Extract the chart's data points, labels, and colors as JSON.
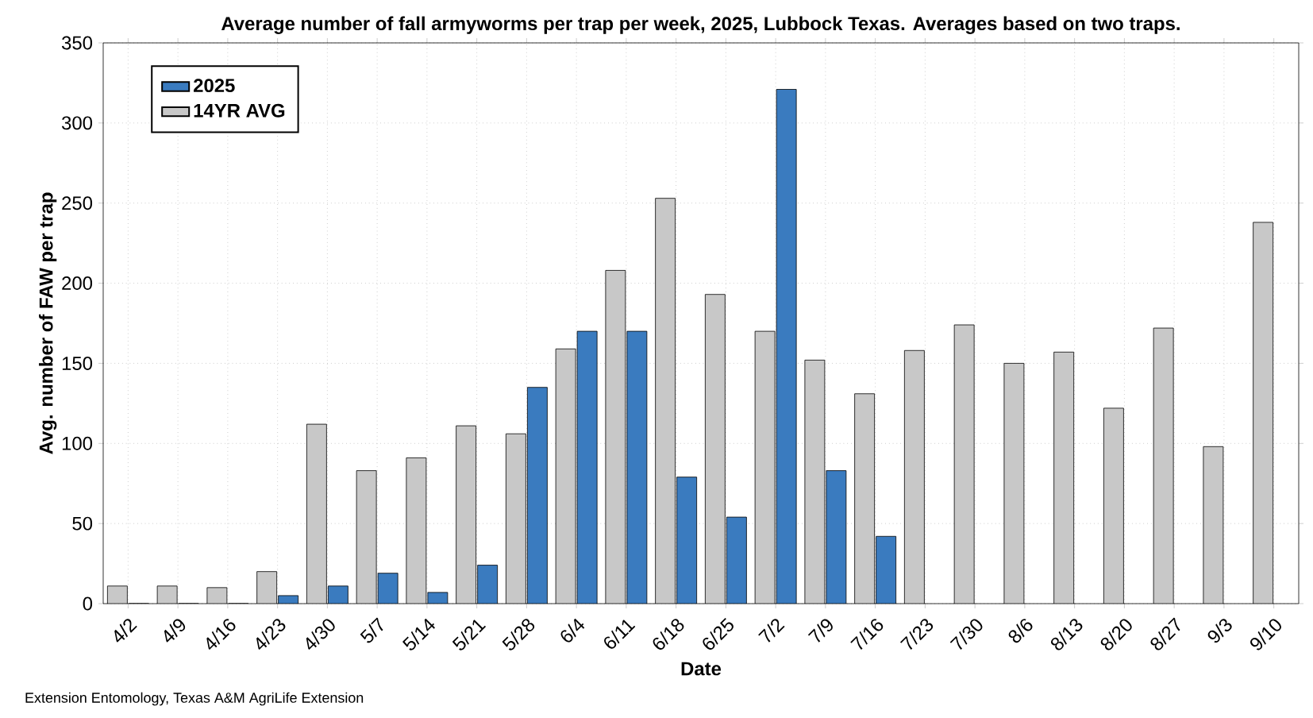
{
  "chart_data": {
    "type": "bar",
    "title": "Average number of fall armyworms per trap per week, 2025, Lubbock Texas. Averages based on two traps.",
    "xlabel": "Date",
    "ylabel": "Avg. number of FAW per trap",
    "categories": [
      "4/2",
      "4/9",
      "4/16",
      "4/23",
      "4/30",
      "5/7",
      "5/14",
      "5/21",
      "5/28",
      "6/4",
      "6/11",
      "6/18",
      "6/25",
      "7/2",
      "7/9",
      "7/16",
      "7/23",
      "7/30",
      "8/6",
      "8/13",
      "8/20",
      "8/27",
      "9/3",
      "9/10"
    ],
    "series": [
      {
        "name": "2025",
        "color": "#3a7bbf",
        "values": [
          0,
          0,
          0,
          5,
          11,
          19,
          7,
          24,
          135,
          170,
          170,
          79,
          54,
          321,
          83,
          42,
          null,
          null,
          null,
          null,
          null,
          null,
          null,
          null
        ]
      },
      {
        "name": "14YR AVG",
        "color": "#c8c8c8",
        "values": [
          11,
          11,
          10,
          20,
          112,
          83,
          91,
          111,
          106,
          159,
          208,
          253,
          193,
          170,
          152,
          131,
          158,
          174,
          150,
          157,
          122,
          172,
          98,
          238
        ]
      }
    ],
    "ylim": [
      0,
      350
    ],
    "yticks": [
      0,
      50,
      100,
      150,
      200,
      250,
      300,
      350
    ],
    "grid": true,
    "legend": "top left",
    "annotations": [
      "Extension Entomology, Texas A&M AgriLife Extension"
    ]
  }
}
